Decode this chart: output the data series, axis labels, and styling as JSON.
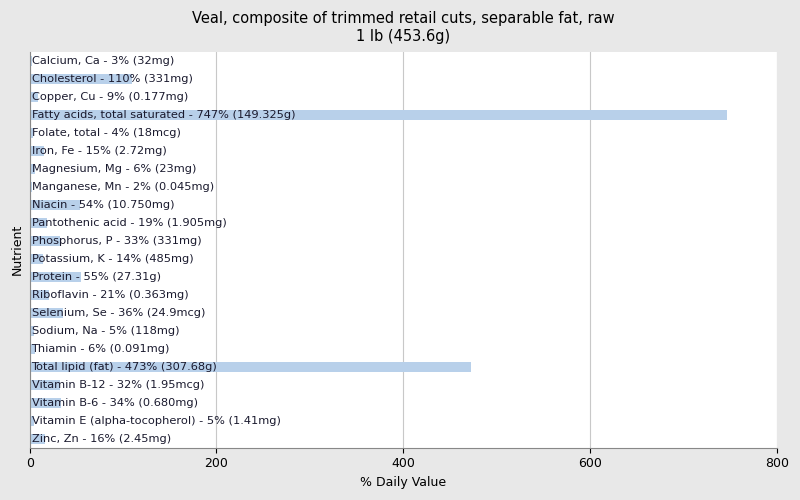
{
  "title": "Veal, composite of trimmed retail cuts, separable fat, raw\n1 lb (453.6g)",
  "xlabel": "% Daily Value",
  "ylabel": "Nutrient",
  "nutrients": [
    "Zinc, Zn - 16% (2.45mg)",
    "Vitamin E (alpha-tocopherol) - 5% (1.41mg)",
    "Vitamin B-6 - 34% (0.680mg)",
    "Vitamin B-12 - 32% (1.95mcg)",
    "Total lipid (fat) - 473% (307.68g)",
    "Thiamin - 6% (0.091mg)",
    "Sodium, Na - 5% (118mg)",
    "Selenium, Se - 36% (24.9mcg)",
    "Riboflavin - 21% (0.363mg)",
    "Protein - 55% (27.31g)",
    "Potassium, K - 14% (485mg)",
    "Phosphorus, P - 33% (331mg)",
    "Pantothenic acid - 19% (1.905mg)",
    "Niacin - 54% (10.750mg)",
    "Manganese, Mn - 2% (0.045mg)",
    "Magnesium, Mg - 6% (23mg)",
    "Iron, Fe - 15% (2.72mg)",
    "Folate, total - 4% (18mcg)",
    "Fatty acids, total saturated - 747% (149.325g)",
    "Copper, Cu - 9% (0.177mg)",
    "Cholesterol - 110% (331mg)",
    "Calcium, Ca - 3% (32mg)"
  ],
  "values": [
    16,
    5,
    34,
    32,
    473,
    6,
    5,
    36,
    21,
    55,
    14,
    33,
    19,
    54,
    2,
    6,
    15,
    4,
    747,
    9,
    110,
    3
  ],
  "bar_color": "#b8d0ea",
  "text_color": "#1a1a2e",
  "background_color": "#e8e8e8",
  "plot_bg_color": "#ffffff",
  "grid_color": "#c8c8c8",
  "xlim": [
    0,
    800
  ],
  "xticks": [
    0,
    200,
    400,
    600,
    800
  ],
  "title_fontsize": 10.5,
  "axis_label_fontsize": 9,
  "tick_fontsize": 9,
  "bar_label_fontsize": 8.2,
  "bar_height": 0.55
}
